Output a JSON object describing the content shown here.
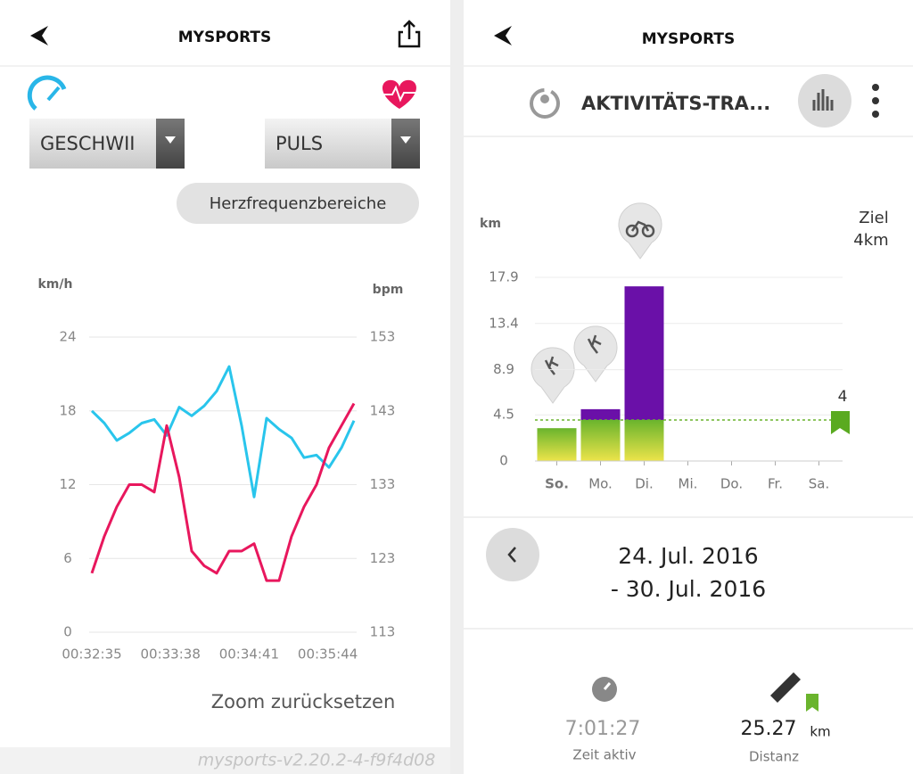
{
  "left": {
    "header": {
      "title": "MYSPORTS"
    },
    "dropdowns": [
      "GESCHWII",
      "PULS"
    ],
    "button": "Herzfrequenzbereiche",
    "zoom_reset": "Zoom zurücksetzen",
    "version": "mysports-v2.20.2-4-f9f4d08"
  },
  "right": {
    "header": {
      "title": "MYSPORTS"
    },
    "section_title": "AKTIVITÄTS-TRA...",
    "date_range": [
      "24. Jul. 2016",
      "- 30. Jul. 2016"
    ],
    "stats": [
      {
        "value": "7:01:27",
        "label": "Zeit aktiv"
      },
      {
        "value": "25.27",
        "unit": "km",
        "label": "Distanz"
      }
    ]
  },
  "chart_data": [
    {
      "type": "line",
      "y_label": "km/h",
      "y2_label": "bpm",
      "x": [
        "00:32:35",
        "00:32:45",
        "00:32:55",
        "00:33:05",
        "00:33:15",
        "00:33:25",
        "00:33:35",
        "00:33:45",
        "00:33:55",
        "00:34:05",
        "00:34:15",
        "00:34:25",
        "00:34:35",
        "00:34:45",
        "00:34:55",
        "00:35:05",
        "00:35:15",
        "00:35:25",
        "00:35:35",
        "00:35:45",
        "00:35:55",
        "00:36:05"
      ],
      "xlim": [
        "00:32:35",
        "00:36:05"
      ],
      "xticks": [
        "00:32:35",
        "00:33:38",
        "00:34:41",
        "00:35:44"
      ],
      "ylim": [
        0,
        24
      ],
      "yticks": [
        0,
        6,
        12,
        18,
        24
      ],
      "y2lim": [
        113,
        153
      ],
      "y2ticks": [
        113,
        123,
        133,
        143,
        153
      ],
      "grid": true,
      "series": [
        {
          "color": "#29c5ec",
          "values": [
            18.0,
            17.0,
            15.6,
            16.2,
            17.0,
            17.3,
            16.0,
            18.3,
            17.6,
            18.4,
            19.6,
            21.6,
            16.8,
            11.0,
            17.4,
            16.5,
            15.8,
            14.2,
            14.4,
            13.4,
            15.0,
            17.2
          ]
        },
        {
          "color": "#e8175d",
          "axis": "y2",
          "values": [
            121,
            126,
            130,
            133,
            133,
            132,
            141,
            134,
            124,
            122,
            121,
            124,
            124,
            125,
            120,
            120,
            126,
            130,
            133,
            138,
            141,
            144
          ]
        }
      ]
    },
    {
      "type": "bar",
      "stacked": true,
      "y_label": "km",
      "categories": [
        "So.",
        "Mo.",
        "Di.",
        "Mi.",
        "Do.",
        "Fr.",
        "Sa."
      ],
      "ylim": [
        0,
        17.9
      ],
      "yticks": [
        0,
        4.5,
        8.9,
        13.4,
        17.9
      ],
      "goal": 4,
      "goal_text": [
        "Ziel",
        "4km"
      ],
      "series": [
        {
          "color": "#6ab42d",
          "values": [
            3.2,
            4,
            4,
            0,
            0,
            0,
            0
          ]
        },
        {
          "color": "#6a10a8",
          "values": [
            0,
            1.05,
            13.02,
            0,
            0,
            0,
            0
          ]
        }
      ]
    }
  ]
}
